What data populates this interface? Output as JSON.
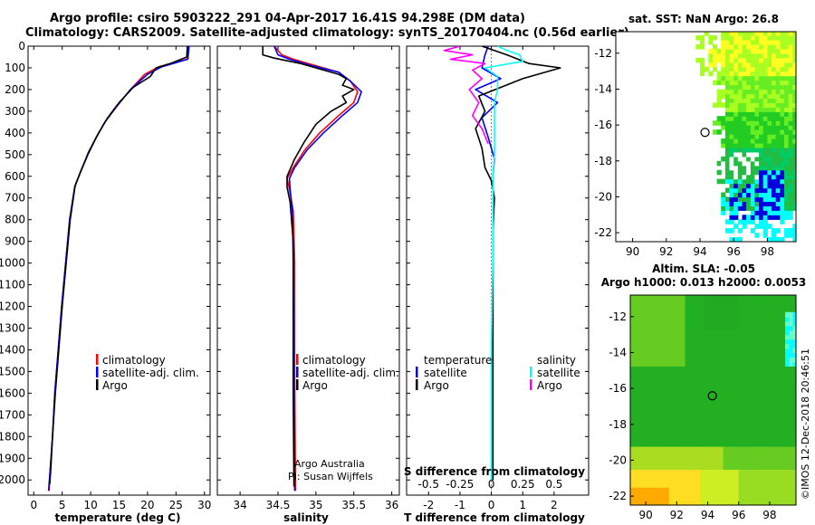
{
  "header": {
    "title_line1": "Argo profile: csiro 5903222_291 04-Apr-2017 16.41S 94.298E (DM data)",
    "title_line2": "Climatology: CARS2009. Satellite-adjusted climatology: synTS_20170404.nc (0.56d earlier)",
    "sst_title": "sat. SST: NaN Argo: 26.8",
    "sla_title1": "Altim. SLA: -0.05",
    "sla_title2": "Argo h1000: 0.013 h2000: 0.0053"
  },
  "footer": {
    "imos_stamp": "©IMOS 12-Dec-2018 20:46:51",
    "credit1": "Argo Australia",
    "credit2": "PI: Susan Wijffels"
  },
  "colors": {
    "climatology": "#ff0000",
    "satellite": "#0000ff",
    "argo": "#000000",
    "sal_satellite": "#00ffff",
    "sal_argo": "#ff00ff"
  },
  "chart_data": [
    {
      "type": "line",
      "id": "temperature",
      "xlabel": "temperature (deg C)",
      "ylabel": "",
      "xlim": [
        -1,
        31
      ],
      "ylim": [
        2070,
        0
      ],
      "xticks": [
        "0",
        "5",
        "10",
        "15",
        "20",
        "25",
        "30"
      ],
      "xtick_values": [
        0,
        5,
        10,
        15,
        20,
        25,
        30
      ],
      "yticks": [
        "0",
        "100",
        "200",
        "300",
        "400",
        "500",
        "600",
        "700",
        "800",
        "900",
        "1000",
        "1100",
        "1200",
        "1300",
        "1400",
        "1500",
        "1600",
        "1700",
        "1800",
        "1900",
        "2000"
      ],
      "legend": [
        "climatology",
        "satellite-adj. clim.",
        "Argo"
      ],
      "series": [
        {
          "name": "climatology",
          "points": [
            [
              27.2,
              0
            ],
            [
              27.0,
              60
            ],
            [
              22,
              95
            ],
            [
              19.5,
              130
            ],
            [
              17,
              200
            ],
            [
              14.5,
              280
            ],
            [
              12.5,
              350
            ],
            [
              11,
              420
            ],
            [
              9.5,
              500
            ],
            [
              8.2,
              580
            ],
            [
              7.2,
              650
            ],
            [
              6.3,
              800
            ],
            [
              5.6,
              1000
            ],
            [
              4.9,
              1200
            ],
            [
              4.3,
              1400
            ],
            [
              3.7,
              1600
            ],
            [
              3.3,
              1800
            ],
            [
              2.9,
              1950
            ],
            [
              2.7,
              2050
            ]
          ]
        },
        {
          "name": "satellite-adj. clim.",
          "points": [
            [
              27.3,
              0
            ],
            [
              27.1,
              60
            ],
            [
              22.5,
              95
            ],
            [
              20,
              130
            ],
            [
              17,
              200
            ],
            [
              14.5,
              280
            ],
            [
              12.5,
              350
            ],
            [
              11,
              420
            ],
            [
              9.5,
              500
            ],
            [
              8.2,
              580
            ],
            [
              7.2,
              650
            ],
            [
              6.3,
              800
            ],
            [
              5.6,
              1000
            ],
            [
              4.9,
              1200
            ],
            [
              4.3,
              1400
            ],
            [
              3.7,
              1600
            ],
            [
              3.3,
              1800
            ],
            [
              2.9,
              1950
            ],
            [
              2.6,
              2050
            ]
          ]
        },
        {
          "name": "Argo",
          "points": [
            [
              27.0,
              0
            ],
            [
              26.9,
              50
            ],
            [
              24,
              80
            ],
            [
              21.5,
              100
            ],
            [
              20.5,
              140
            ],
            [
              17.5,
              190
            ],
            [
              15,
              260
            ],
            [
              13,
              330
            ],
            [
              11.2,
              410
            ],
            [
              9.6,
              490
            ],
            [
              8.4,
              570
            ],
            [
              7.3,
              640
            ],
            [
              6.4,
              800
            ],
            [
              5.7,
              1000
            ],
            [
              5.0,
              1200
            ],
            [
              4.4,
              1400
            ],
            [
              3.8,
              1600
            ],
            [
              3.3,
              1800
            ],
            [
              3.0,
              1950
            ],
            [
              2.8,
              2020
            ]
          ]
        }
      ]
    },
    {
      "type": "line",
      "id": "salinity",
      "xlabel": "salinity",
      "xlim": [
        33.7,
        36.1
      ],
      "ylim": [
        2070,
        0
      ],
      "xticks": [
        "34",
        "34.5",
        "35",
        "35.5",
        "36"
      ],
      "xtick_values": [
        34,
        34.5,
        35,
        35.5,
        36
      ],
      "legend": [
        "climatology",
        "satellite-adj. clim.",
        "Argo"
      ],
      "series": [
        {
          "name": "climatology",
          "points": [
            [
              34.45,
              0
            ],
            [
              34.55,
              40
            ],
            [
              34.7,
              60
            ],
            [
              35.0,
              90
            ],
            [
              35.3,
              120
            ],
            [
              35.45,
              160
            ],
            [
              35.55,
              210
            ],
            [
              35.5,
              260
            ],
            [
              35.3,
              320
            ],
            [
              35.05,
              400
            ],
            [
              34.85,
              480
            ],
            [
              34.7,
              560
            ],
            [
              34.62,
              610
            ],
            [
              34.65,
              660
            ],
            [
              34.7,
              760
            ],
            [
              34.72,
              1000
            ],
            [
              34.72,
              1500
            ],
            [
              34.73,
              2050
            ]
          ]
        },
        {
          "name": "satellite-adj. clim.",
          "points": [
            [
              34.45,
              0
            ],
            [
              34.5,
              40
            ],
            [
              34.65,
              60
            ],
            [
              34.95,
              90
            ],
            [
              35.3,
              120
            ],
            [
              35.45,
              160
            ],
            [
              35.6,
              210
            ],
            [
              35.55,
              260
            ],
            [
              35.35,
              320
            ],
            [
              35.1,
              400
            ],
            [
              34.88,
              480
            ],
            [
              34.72,
              560
            ],
            [
              34.65,
              610
            ],
            [
              34.66,
              660
            ],
            [
              34.69,
              760
            ],
            [
              34.7,
              1000
            ],
            [
              34.71,
              1500
            ],
            [
              34.72,
              2050
            ]
          ]
        },
        {
          "name": "Argo",
          "points": [
            [
              34.3,
              0
            ],
            [
              34.3,
              40
            ],
            [
              34.45,
              55
            ],
            [
              34.8,
              80
            ],
            [
              35.1,
              110
            ],
            [
              35.3,
              130
            ],
            [
              35.4,
              150
            ],
            [
              35.35,
              180
            ],
            [
              35.5,
              200
            ],
            [
              35.35,
              230
            ],
            [
              35.4,
              260
            ],
            [
              35.2,
              300
            ],
            [
              35.0,
              360
            ],
            [
              34.85,
              440
            ],
            [
              34.72,
              520
            ],
            [
              34.62,
              600
            ],
            [
              34.62,
              650
            ],
            [
              34.66,
              720
            ],
            [
              34.7,
              900
            ],
            [
              34.7,
              1200
            ],
            [
              34.7,
              1600
            ],
            [
              34.71,
              2030
            ]
          ]
        }
      ]
    },
    {
      "type": "line",
      "id": "difference",
      "xlabel": "T difference from climatology",
      "xlabel_top": "S difference from climatology",
      "xlim": [
        -2.7,
        3.1
      ],
      "ylim": [
        2070,
        0
      ],
      "xticks": [
        "-2",
        "-1",
        "0",
        "1",
        "2"
      ],
      "xtick_values": [
        -2,
        -1,
        0,
        1,
        2
      ],
      "xticks_s": [
        "-0.5",
        "-0.25",
        "0",
        "0.25",
        "0.5"
      ],
      "xticks_s_pos": [
        -2,
        -1,
        0,
        1,
        2
      ],
      "legend_left": [
        "temperature",
        "satellite",
        "Argo"
      ],
      "legend_right": [
        "salinity",
        "satellite",
        "Argo"
      ],
      "series": [
        {
          "name": "T satellite",
          "points": [
            [
              -0.1,
              0
            ],
            [
              -0.2,
              40
            ],
            [
              -0.3,
              100
            ],
            [
              0.3,
              150
            ],
            [
              -0.5,
              200
            ],
            [
              0.2,
              260
            ],
            [
              -0.3,
              330
            ],
            [
              -0.1,
              420
            ],
            [
              0.1,
              520
            ],
            [
              0.05,
              600
            ],
            [
              0.05,
              700
            ],
            [
              0.05,
              900
            ],
            [
              0.05,
              1200
            ],
            [
              0.05,
              1600
            ],
            [
              0.05,
              2000
            ]
          ]
        },
        {
          "name": "T Argo",
          "points": [
            [
              -0.3,
              0
            ],
            [
              0.5,
              40
            ],
            [
              1.2,
              80
            ],
            [
              2.2,
              100
            ],
            [
              1.0,
              150
            ],
            [
              0.3,
              190
            ],
            [
              -0.4,
              230
            ],
            [
              -0.2,
              300
            ],
            [
              -0.5,
              380
            ],
            [
              -0.3,
              470
            ],
            [
              -0.2,
              560
            ],
            [
              0.0,
              620
            ],
            [
              0.1,
              700
            ],
            [
              0.05,
              850
            ],
            [
              0.05,
              1100
            ],
            [
              0.05,
              1500
            ],
            [
              0.05,
              2000
            ]
          ]
        },
        {
          "name": "S satellite",
          "points": [
            [
              0.2,
              0
            ],
            [
              0.5,
              20
            ],
            [
              0.9,
              40
            ],
            [
              1.0,
              70
            ],
            [
              -0.2,
              100
            ],
            [
              0.2,
              140
            ],
            [
              0.2,
              200
            ],
            [
              0.1,
              260
            ],
            [
              0.1,
              320
            ],
            [
              0.1,
              400
            ],
            [
              0.1,
              500
            ],
            [
              0.05,
              600
            ],
            [
              0.05,
              700
            ],
            [
              0.05,
              1000
            ],
            [
              0.0,
              1400
            ],
            [
              0.0,
              1800
            ],
            [
              0.0,
              2000
            ]
          ]
        },
        {
          "name": "S Argo",
          "points": [
            [
              -1.0,
              0
            ],
            [
              -1.5,
              20
            ],
            [
              -0.6,
              40
            ],
            [
              -1.3,
              60
            ],
            [
              -0.2,
              80
            ],
            [
              -0.6,
              110
            ],
            [
              -0.3,
              150
            ],
            [
              -0.7,
              200
            ],
            [
              -0.4,
              260
            ],
            [
              -0.6,
              320
            ],
            [
              -0.3,
              380
            ],
            [
              -0.1,
              450
            ]
          ]
        }
      ]
    },
    {
      "type": "heatmap",
      "id": "sst_map",
      "title": "sat. SST: NaN Argo: 26.8",
      "xlim": [
        89,
        99.7
      ],
      "ylim": [
        -22.5,
        -10.8
      ],
      "xticks": [
        "90",
        "92",
        "94",
        "96",
        "98"
      ],
      "xtick_values": [
        90,
        92,
        94,
        96,
        98
      ],
      "yticks": [
        "-12",
        "-14",
        "-16",
        "-18",
        "-20",
        "-22"
      ],
      "ytick_values": [
        -12,
        -14,
        -16,
        -18,
        -20,
        -22
      ],
      "argo_position": [
        94.3,
        -16.41
      ]
    },
    {
      "type": "heatmap",
      "id": "sla_map",
      "title": "Altim. SLA: -0.05",
      "subtitle": "Argo h1000: 0.013 h2000: 0.0053",
      "xlim": [
        89,
        99.7
      ],
      "ylim": [
        -22.5,
        -10.8
      ],
      "xticks": [
        "90",
        "92",
        "94",
        "96",
        "98"
      ],
      "xtick_values": [
        90,
        92,
        94,
        96,
        98
      ],
      "yticks": [
        "-12",
        "-14",
        "-16",
        "-18",
        "-20",
        "-22"
      ],
      "ytick_values": [
        -12,
        -14,
        -16,
        -18,
        -20,
        -22
      ],
      "argo_position": [
        94.3,
        -16.41
      ]
    }
  ]
}
